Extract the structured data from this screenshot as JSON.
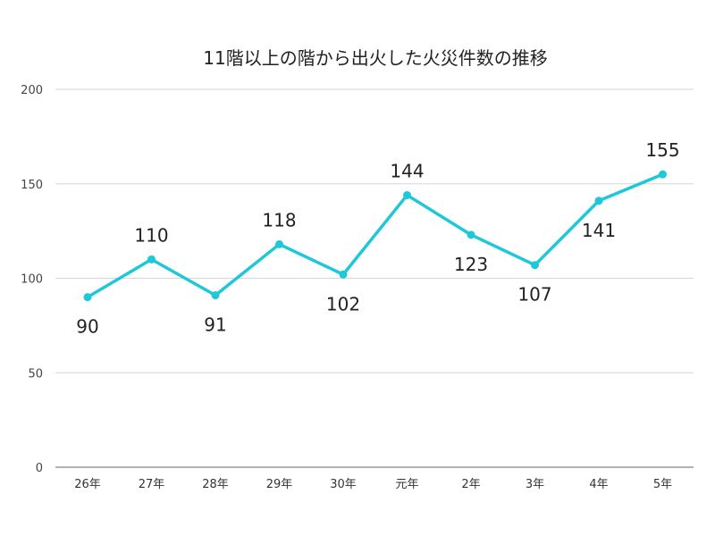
{
  "chart_data": {
    "type": "line",
    "title": "11階以上の階から出火した火災件数の推移",
    "categories": [
      "26年",
      "27年",
      "28年",
      "29年",
      "30年",
      "元年",
      "2年",
      "3年",
      "4年",
      "5年"
    ],
    "values": [
      90,
      110,
      91,
      118,
      102,
      144,
      123,
      107,
      141,
      155
    ],
    "data_labels": [
      "90",
      "110",
      "91",
      "118",
      "102",
      "144",
      "123",
      "107",
      "141",
      "155"
    ],
    "label_positions": [
      "below",
      "above",
      "below",
      "above",
      "below",
      "above",
      "below",
      "below",
      "below",
      "above"
    ],
    "ylim": [
      0,
      200
    ],
    "yticks": [
      "0",
      "50",
      "100",
      "150",
      "200"
    ],
    "grid": true,
    "line_color": "#1ec8d8"
  }
}
